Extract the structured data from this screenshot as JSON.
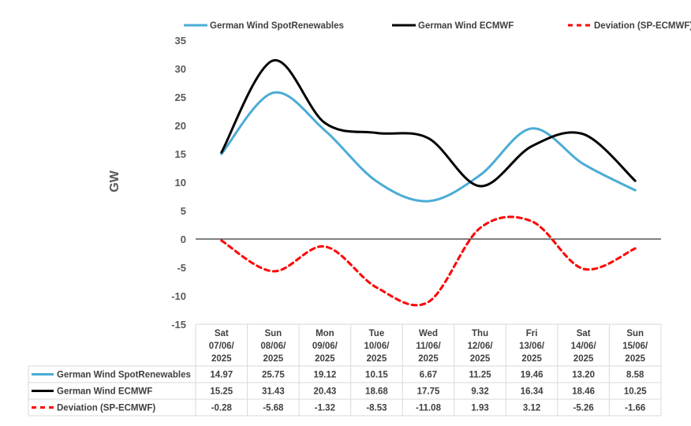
{
  "chart_data": {
    "type": "line",
    "ylabel": "GW",
    "ylim": [
      -15,
      35
    ],
    "yticks": [
      35,
      30,
      25,
      20,
      15,
      10,
      5,
      0,
      -5,
      -10,
      -15
    ],
    "categories": [
      [
        "Sat",
        "07/06/",
        "2025"
      ],
      [
        "Sun",
        "08/06/",
        "2025"
      ],
      [
        "Mon",
        "09/06/",
        "2025"
      ],
      [
        "Tue",
        "10/06/",
        "2025"
      ],
      [
        "Wed",
        "11/06/",
        "2025"
      ],
      [
        "Thu",
        "12/06/",
        "2025"
      ],
      [
        "Fri",
        "13/06/",
        "2025"
      ],
      [
        "Sat",
        "14/06/",
        "2025"
      ],
      [
        "Sun",
        "15/06/",
        "2025"
      ]
    ],
    "series": [
      {
        "name": "German Wind SpotRenewables",
        "color": "#4BACD6",
        "dash": "solid",
        "values": [
          14.97,
          25.75,
          19.12,
          10.15,
          6.67,
          11.25,
          19.46,
          13.2,
          8.58
        ],
        "labels": [
          "14.97",
          "25.75",
          "19.12",
          "10.15",
          "6.67",
          "11.25",
          "19.46",
          "13.20",
          "8.58"
        ]
      },
      {
        "name": "German Wind ECMWF",
        "color": "#000000",
        "dash": "solid",
        "values": [
          15.25,
          31.43,
          20.43,
          18.68,
          17.75,
          9.32,
          16.34,
          18.46,
          10.25
        ],
        "labels": [
          "15.25",
          "31.43",
          "20.43",
          "18.68",
          "17.75",
          "9.32",
          "16.34",
          "18.46",
          "10.25"
        ]
      },
      {
        "name": "Deviation (SP-ECMWF)",
        "color": "#FF0000",
        "dash": "dashed",
        "values": [
          -0.28,
          -5.68,
          -1.32,
          -8.53,
          -11.08,
          1.93,
          3.12,
          -5.26,
          -1.66
        ],
        "labels": [
          "-0.28",
          "-5.68",
          "-1.32",
          "-8.53",
          "-11.08",
          "1.93",
          "3.12",
          "-5.26",
          "-1.66"
        ]
      }
    ],
    "legend_position": "top",
    "grid": false,
    "data_table": true
  }
}
